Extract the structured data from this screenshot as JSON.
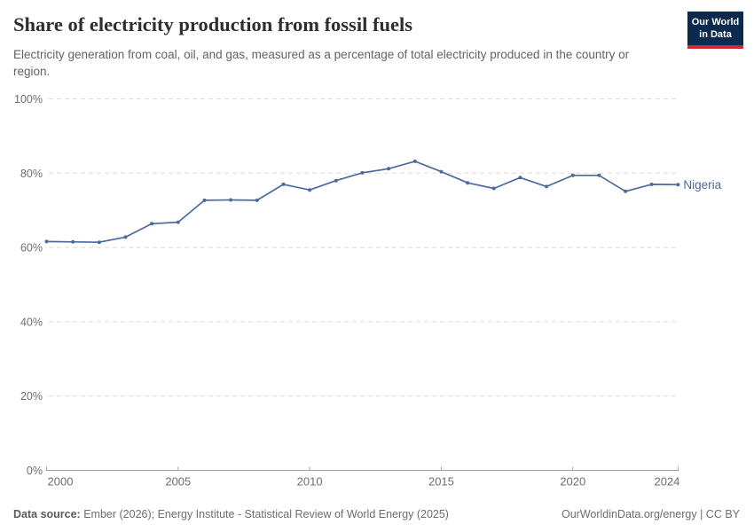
{
  "header": {
    "title": "Share of electricity production from fossil fuels",
    "subtitle": "Electricity generation from coal, oil, and gas, measured as a percentage of total electricity produced in the country or region.",
    "logo": {
      "line1": "Our World",
      "line2": "in Data"
    }
  },
  "chart_data": {
    "type": "line",
    "title": "Share of electricity production from fossil fuels",
    "xlabel": "",
    "ylabel": "",
    "xlim": [
      2000,
      2024
    ],
    "ylim": [
      0,
      100
    ],
    "x_ticks": [
      2000,
      2005,
      2010,
      2015,
      2020,
      2024
    ],
    "y_ticks": [
      0,
      20,
      40,
      60,
      80,
      100
    ],
    "y_tick_suffix": "%",
    "grid": "horizontal-dashed",
    "legend_position": "end-of-line-label",
    "series": [
      {
        "name": "Nigeria",
        "color": "#4c6a9c",
        "x": [
          2000,
          2001,
          2002,
          2003,
          2004,
          2005,
          2006,
          2007,
          2008,
          2009,
          2010,
          2011,
          2012,
          2013,
          2014,
          2015,
          2016,
          2017,
          2018,
          2019,
          2020,
          2021,
          2022,
          2023,
          2024
        ],
        "values": [
          61.6,
          61.5,
          61.4,
          62.8,
          66.4,
          66.8,
          72.7,
          72.8,
          72.7,
          77.0,
          75.5,
          78.0,
          80.1,
          81.2,
          83.2,
          80.4,
          77.4,
          75.9,
          78.8,
          76.4,
          79.4,
          79.4,
          75.1,
          77.0,
          76.9
        ]
      }
    ]
  },
  "footer": {
    "source_label": "Data source:",
    "source_text": "Ember (2026); Energy Institute - Statistical Review of World Energy (2025)",
    "right_text": "OurWorldinData.org/energy | CC BY"
  },
  "colors": {
    "line": "#4c6a9c",
    "grid": "#dcdcdc",
    "axis": "#a3a3a3",
    "tick_label": "#6e6e6e",
    "title": "#2e2e2e",
    "subtitle": "#636363",
    "logo_bg": "#0c2a4e",
    "logo_stripe": "#ce2a30"
  }
}
